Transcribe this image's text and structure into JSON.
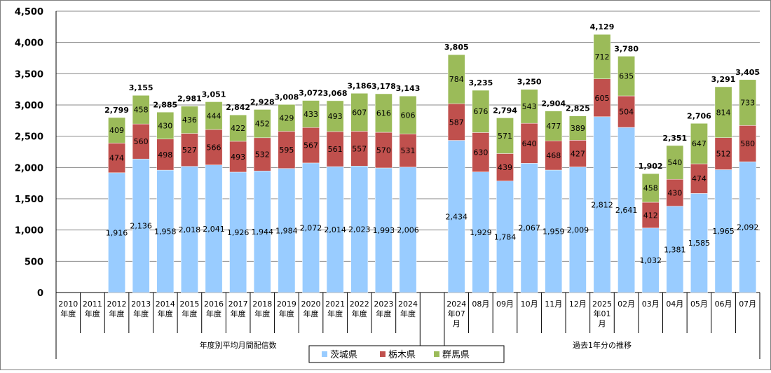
{
  "chart_data": {
    "type": "bar",
    "stacked": true,
    "ylim": [
      0,
      4500
    ],
    "yticks": [
      "0",
      "500",
      "1,000",
      "1,500",
      "2,000",
      "2,500",
      "3,000",
      "3,500",
      "4,000",
      "4,500"
    ],
    "grid": true,
    "legend_position": "bottom",
    "categories": [
      [
        "2010",
        "年度"
      ],
      [
        "2011",
        "年度"
      ],
      [
        "2012",
        "年度"
      ],
      [
        "2013",
        "年度"
      ],
      [
        "2014",
        "年度"
      ],
      [
        "2015",
        "年度"
      ],
      [
        "2016",
        "年度"
      ],
      [
        "2017",
        "年度"
      ],
      [
        "2018",
        "年度"
      ],
      [
        "2019",
        "年度"
      ],
      [
        "2020",
        "年度"
      ],
      [
        "2021",
        "年度"
      ],
      [
        "2022",
        "年度"
      ],
      [
        "2023",
        "年度"
      ],
      [
        "2024",
        "年度"
      ],
      [
        ""
      ],
      [
        "2024",
        "年07",
        "月"
      ],
      [
        "08月"
      ],
      [
        "09月"
      ],
      [
        "10月"
      ],
      [
        "11月"
      ],
      [
        "12月"
      ],
      [
        "2025",
        "年01",
        "月"
      ],
      [
        "02月"
      ],
      [
        "03月"
      ],
      [
        "04月"
      ],
      [
        "05月"
      ],
      [
        "06月"
      ],
      [
        "07月"
      ]
    ],
    "groups": [
      {
        "label": "年度別平均月間配信数"
      },
      {
        "label": "過去1年分の推移"
      }
    ],
    "series": [
      {
        "name": "茨城県",
        "color": "#99ccff",
        "values": [
          null,
          null,
          1916,
          2136,
          1958,
          2018,
          2041,
          1926,
          1944,
          1984,
          2072,
          2014,
          2023,
          1993,
          2006,
          null,
          2434,
          1929,
          1784,
          2067,
          1959,
          2009,
          2812,
          2641,
          1032,
          1381,
          1585,
          1965,
          2092
        ],
        "labels": [
          null,
          null,
          "1,916",
          "2,136",
          "1,958",
          "2,018",
          "2,041",
          "1,926",
          "1,944",
          "1,984",
          "2,072",
          "2,014",
          "2,023",
          "1,993",
          "2,006",
          null,
          "2,434",
          "1,929",
          "1,784",
          "2,067",
          "1,959",
          "2,009",
          "2,812",
          "2,641",
          "1,032",
          "1,381",
          "1,585",
          "1,965",
          "2,092"
        ]
      },
      {
        "name": "栃木県",
        "color": "#c0504d",
        "values": [
          null,
          null,
          474,
          560,
          498,
          527,
          566,
          493,
          532,
          595,
          567,
          561,
          557,
          570,
          531,
          null,
          587,
          630,
          439,
          640,
          468,
          427,
          605,
          504,
          412,
          430,
          474,
          512,
          580
        ],
        "labels": [
          null,
          null,
          "474",
          "560",
          "498",
          "527",
          "566",
          "493",
          "532",
          "595",
          "567",
          "561",
          "557",
          "570",
          "531",
          null,
          "587",
          "630",
          "439",
          "640",
          "468",
          "427",
          "605",
          "504",
          "412",
          "430",
          "474",
          "512",
          "580"
        ]
      },
      {
        "name": "群馬県",
        "color": "#9bbb59",
        "values": [
          null,
          null,
          409,
          458,
          430,
          436,
          444,
          422,
          452,
          429,
          433,
          493,
          607,
          616,
          606,
          null,
          784,
          676,
          571,
          543,
          477,
          389,
          712,
          635,
          458,
          540,
          647,
          814,
          733
        ],
        "labels": [
          null,
          null,
          "409",
          "458",
          "430",
          "436",
          "444",
          "422",
          "452",
          "429",
          "433",
          "493",
          "607",
          "616",
          "606",
          null,
          "784",
          "676",
          "571",
          "543",
          "477",
          "389",
          "712",
          "635",
          "458",
          "540",
          "647",
          "814",
          "733"
        ]
      }
    ],
    "totals": [
      null,
      null,
      2799,
      3155,
      2885,
      2981,
      3051,
      2842,
      2928,
      3008,
      3072,
      3068,
      3186,
      3178,
      3143,
      null,
      3805,
      3235,
      2794,
      3250,
      2904,
      2825,
      4129,
      3780,
      1902,
      2351,
      2706,
      3291,
      3405
    ],
    "total_labels": [
      null,
      null,
      "2,799",
      "3,155",
      "2,885",
      "2,981",
      "3,051",
      "2,842",
      "2,928",
      "3,008",
      "3,072",
      "3,068",
      "3,186",
      "3,178",
      "3,143",
      null,
      "3,805",
      "3,235",
      "2,794",
      "3,250",
      "2,904",
      "2,825",
      "4,129",
      "3,780",
      "1,902",
      "2,351",
      "2,706",
      "3,291",
      "3,405"
    ]
  }
}
